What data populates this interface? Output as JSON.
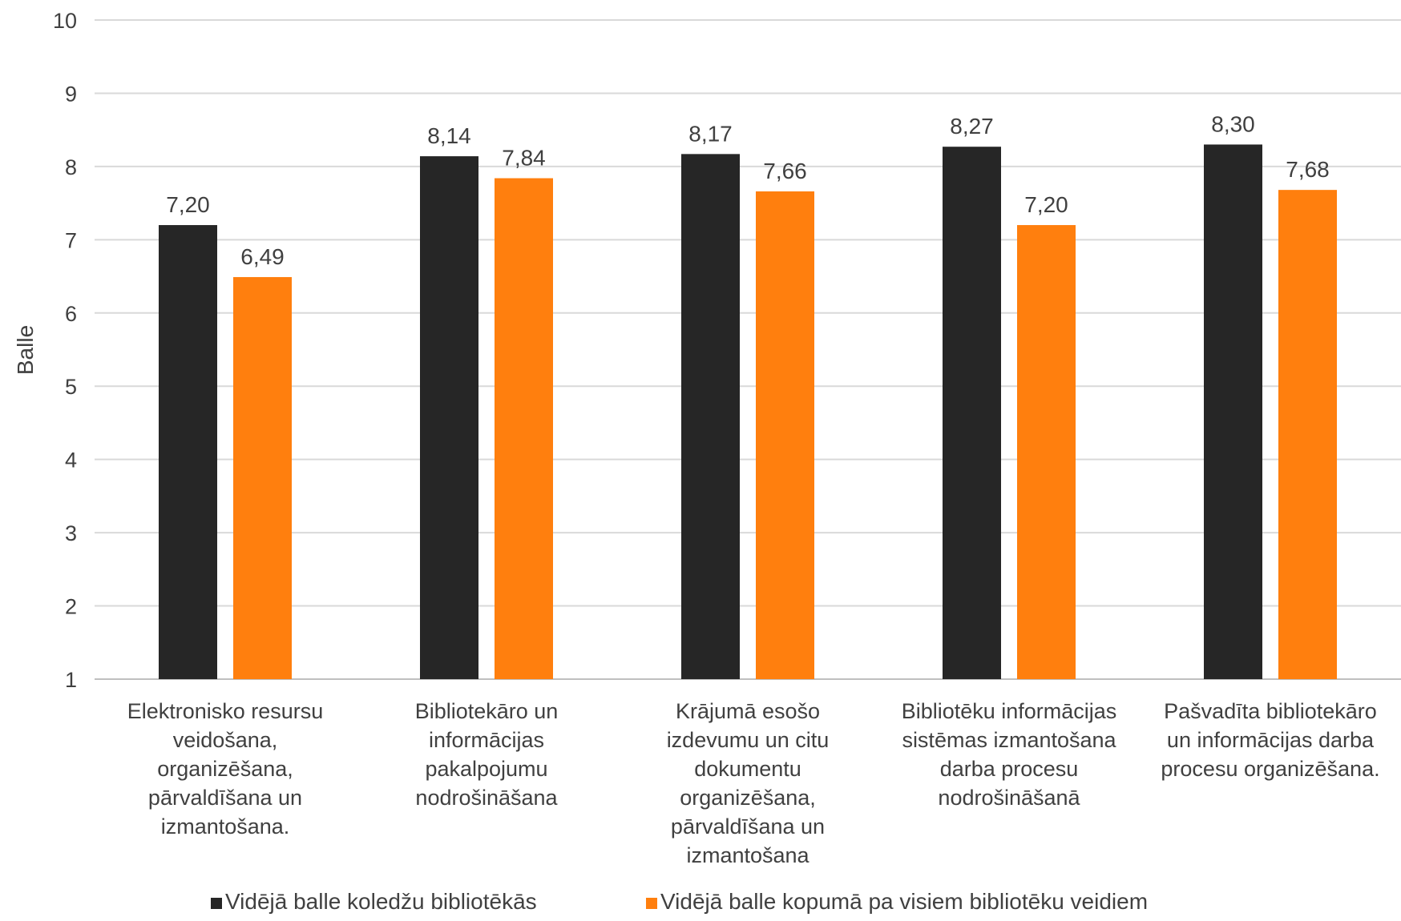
{
  "chart_data": {
    "type": "bar",
    "title": "",
    "xlabel": "",
    "ylabel": "Balle",
    "ylim": [
      1,
      10
    ],
    "yticks": [
      "1",
      "2",
      "3",
      "4",
      "5",
      "6",
      "7",
      "8",
      "9",
      "10"
    ],
    "grid": true,
    "legend_position": "bottom",
    "categories": [
      [
        "Elektronisko resursu",
        "veidošana,",
        "organizēšana,",
        "pārvaldīšana un",
        "izmantošana."
      ],
      [
        "Bibliotekāro un",
        "informācijas",
        "pakalpojumu",
        "nodrošināšana"
      ],
      [
        "Krājumā esošo",
        "izdevumu un citu",
        "dokumentu",
        "organizēšana,",
        "pārvaldīšana un",
        "izmantošana"
      ],
      [
        "Bibliotēku informācijas",
        "sistēmas izmantošana",
        "darba procesu",
        "nodrošināšanā"
      ],
      [
        "Pašvadīta bibliotekāro",
        "un informācijas darba",
        "procesu organizēšana."
      ]
    ],
    "series": [
      {
        "name": "Vidējā balle koledžu bibliotēkās",
        "color": "#262626",
        "values": [
          7.2,
          8.14,
          8.17,
          8.27,
          8.3
        ],
        "labels": [
          "7,20",
          "8,14",
          "8,17",
          "8,27",
          "8,30"
        ]
      },
      {
        "name": "Vidējā balle kopumā pa visiem bibliotēku veidiem",
        "color": "#ff7f0e",
        "values": [
          6.49,
          7.84,
          7.66,
          7.2,
          7.68
        ],
        "labels": [
          "6,49",
          "7,84",
          "7,66",
          "7,20",
          "7,68"
        ]
      }
    ]
  }
}
